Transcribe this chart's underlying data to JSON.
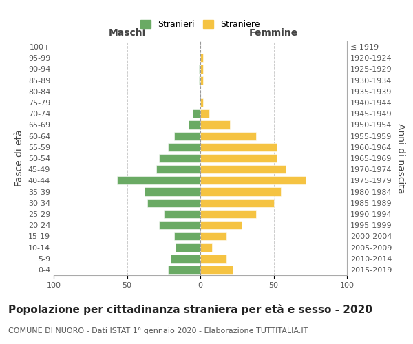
{
  "age_groups": [
    "0-4",
    "5-9",
    "10-14",
    "15-19",
    "20-24",
    "25-29",
    "30-34",
    "35-39",
    "40-44",
    "45-49",
    "50-54",
    "55-59",
    "60-64",
    "65-69",
    "70-74",
    "75-79",
    "80-84",
    "85-89",
    "90-94",
    "95-99",
    "100+"
  ],
  "birth_years": [
    "2015-2019",
    "2010-2014",
    "2005-2009",
    "2000-2004",
    "1995-1999",
    "1990-1994",
    "1985-1989",
    "1980-1984",
    "1975-1979",
    "1970-1974",
    "1965-1969",
    "1960-1964",
    "1955-1959",
    "1950-1954",
    "1945-1949",
    "1940-1944",
    "1935-1939",
    "1930-1934",
    "1925-1929",
    "1920-1924",
    "≤ 1919"
  ],
  "maschi": [
    22,
    20,
    17,
    18,
    28,
    25,
    36,
    38,
    57,
    30,
    28,
    22,
    18,
    8,
    5,
    0,
    0,
    1,
    1,
    0,
    0
  ],
  "femmine": [
    22,
    18,
    8,
    18,
    28,
    38,
    50,
    55,
    72,
    58,
    52,
    52,
    38,
    20,
    6,
    2,
    0,
    2,
    2,
    2,
    0
  ],
  "maschi_color": "#6aaa64",
  "femmine_color": "#f5c342",
  "background_color": "#ffffff",
  "grid_color": "#cccccc",
  "title": "Popolazione per cittadinanza straniera per età e sesso - 2020",
  "subtitle": "COMUNE DI NUORO - Dati ISTAT 1° gennaio 2020 - Elaborazione TUTTITALIA.IT",
  "xlabel_left": "Maschi",
  "xlabel_right": "Femmine",
  "ylabel_left": "Fasce di età",
  "ylabel_right": "Anni di nascita",
  "legend_maschi": "Stranieri",
  "legend_femmine": "Straniere",
  "xlim": 100,
  "title_fontsize": 11,
  "subtitle_fontsize": 8,
  "tick_fontsize": 8,
  "label_fontsize": 10
}
